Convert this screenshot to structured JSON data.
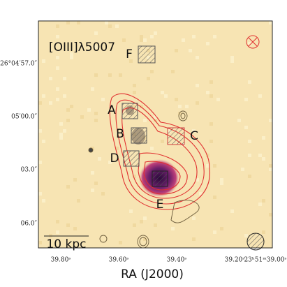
{
  "title": "[OIII]λ5007",
  "y_tick_labels": [
    "-26°04′57.0″",
    "05′00.0″",
    "03.0″",
    "06.0″"
  ],
  "x_tick_labels": [
    "39.80ˢ",
    "39.60ˢ",
    "39.40ˢ",
    "39.20ˢ",
    "23ʰ51ᵐ39.00ˢ"
  ],
  "x_axis_label": "RA (J2000)",
  "regions": [
    "A",
    "B",
    "C",
    "D",
    "E",
    "F"
  ],
  "scale_bar": "10 kpc"
}
